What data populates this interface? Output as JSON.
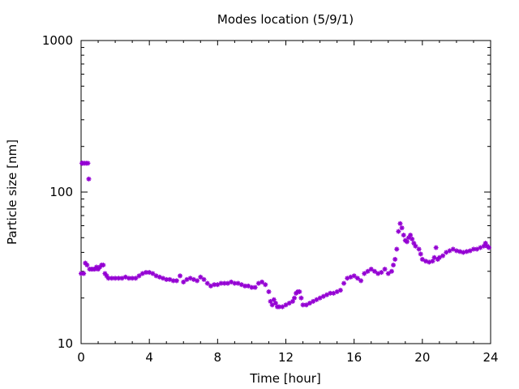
{
  "chart_data": {
    "type": "scatter",
    "title": "Modes location (5/9/1)",
    "xlabel": "Time [hour]",
    "ylabel": "Particle size [nm]",
    "xlim": [
      0,
      24
    ],
    "ylim": [
      10,
      1000
    ],
    "y_scale": "log",
    "x_ticks": [
      0,
      4,
      8,
      12,
      16,
      20,
      24
    ],
    "x_tick_labels": [
      "0",
      "4",
      "8",
      "12",
      "16",
      "20",
      "24"
    ],
    "y_ticks": [
      10,
      100,
      1000
    ],
    "y_tick_labels": [
      "10",
      "100",
      "1000"
    ],
    "grid": false,
    "marker_color": "#9400d3",
    "series": [
      {
        "points": [
          [
            0.0,
            29
          ],
          [
            0.05,
            155
          ],
          [
            0.1,
            155
          ],
          [
            0.15,
            29
          ],
          [
            0.2,
            155
          ],
          [
            0.25,
            34
          ],
          [
            0.3,
            155
          ],
          [
            0.35,
            33
          ],
          [
            0.4,
            155
          ],
          [
            0.45,
            122
          ],
          [
            0.5,
            31
          ],
          [
            0.6,
            31
          ],
          [
            0.7,
            31
          ],
          [
            0.8,
            31
          ],
          [
            0.9,
            32
          ],
          [
            1.0,
            31
          ],
          [
            1.1,
            32
          ],
          [
            1.2,
            33
          ],
          [
            1.3,
            33
          ],
          [
            1.4,
            29
          ],
          [
            1.5,
            28
          ],
          [
            1.6,
            27
          ],
          [
            1.8,
            27
          ],
          [
            2.0,
            27
          ],
          [
            2.2,
            27
          ],
          [
            2.4,
            27
          ],
          [
            2.6,
            27.5
          ],
          [
            2.8,
            27
          ],
          [
            3.0,
            27
          ],
          [
            3.2,
            27
          ],
          [
            3.4,
            28
          ],
          [
            3.6,
            29
          ],
          [
            3.8,
            29.5
          ],
          [
            4.0,
            29.5
          ],
          [
            4.2,
            29
          ],
          [
            4.4,
            28
          ],
          [
            4.6,
            27.5
          ],
          [
            4.8,
            27
          ],
          [
            5.0,
            26.5
          ],
          [
            5.2,
            26.5
          ],
          [
            5.4,
            26
          ],
          [
            5.6,
            26
          ],
          [
            5.8,
            28
          ],
          [
            6.0,
            25.5
          ],
          [
            6.2,
            26.5
          ],
          [
            6.4,
            27
          ],
          [
            6.6,
            26.5
          ],
          [
            6.8,
            26
          ],
          [
            7.0,
            27.5
          ],
          [
            7.2,
            26.5
          ],
          [
            7.4,
            25
          ],
          [
            7.6,
            24
          ],
          [
            7.8,
            24.5
          ],
          [
            8.0,
            24.5
          ],
          [
            8.2,
            25
          ],
          [
            8.4,
            25
          ],
          [
            8.6,
            25
          ],
          [
            8.8,
            25.5
          ],
          [
            9.0,
            25
          ],
          [
            9.2,
            25
          ],
          [
            9.4,
            24.5
          ],
          [
            9.6,
            24
          ],
          [
            9.8,
            24
          ],
          [
            10.0,
            23.5
          ],
          [
            10.2,
            23.5
          ],
          [
            10.4,
            25
          ],
          [
            10.6,
            25.5
          ],
          [
            10.8,
            24.5
          ],
          [
            11.0,
            22
          ],
          [
            11.1,
            19
          ],
          [
            11.2,
            18
          ],
          [
            11.3,
            19.5
          ],
          [
            11.4,
            18.5
          ],
          [
            11.5,
            17.5
          ],
          [
            11.6,
            17.5
          ],
          [
            11.8,
            17.5
          ],
          [
            12.0,
            18
          ],
          [
            12.2,
            18.5
          ],
          [
            12.4,
            19
          ],
          [
            12.5,
            20
          ],
          [
            12.6,
            21.5
          ],
          [
            12.7,
            22
          ],
          [
            12.8,
            22
          ],
          [
            12.9,
            20
          ],
          [
            13.0,
            18
          ],
          [
            13.2,
            18
          ],
          [
            13.4,
            18.5
          ],
          [
            13.6,
            19
          ],
          [
            13.8,
            19.5
          ],
          [
            14.0,
            20
          ],
          [
            14.2,
            20.5
          ],
          [
            14.4,
            21
          ],
          [
            14.6,
            21.5
          ],
          [
            14.8,
            21.5
          ],
          [
            15.0,
            22
          ],
          [
            15.2,
            22.5
          ],
          [
            15.4,
            25
          ],
          [
            15.6,
            27
          ],
          [
            15.8,
            27.5
          ],
          [
            16.0,
            28
          ],
          [
            16.2,
            27
          ],
          [
            16.4,
            26
          ],
          [
            16.6,
            29
          ],
          [
            16.8,
            30
          ],
          [
            17.0,
            31
          ],
          [
            17.2,
            30
          ],
          [
            17.4,
            29
          ],
          [
            17.6,
            29.5
          ],
          [
            17.8,
            31
          ],
          [
            18.0,
            29
          ],
          [
            18.2,
            30
          ],
          [
            18.3,
            33
          ],
          [
            18.4,
            36
          ],
          [
            18.5,
            42
          ],
          [
            18.6,
            55
          ],
          [
            18.7,
            62
          ],
          [
            18.8,
            58
          ],
          [
            18.9,
            52
          ],
          [
            19.0,
            48
          ],
          [
            19.1,
            47
          ],
          [
            19.2,
            50
          ],
          [
            19.3,
            52
          ],
          [
            19.4,
            49
          ],
          [
            19.5,
            46
          ],
          [
            19.6,
            44
          ],
          [
            19.8,
            42
          ],
          [
            19.9,
            39
          ],
          [
            20.0,
            36
          ],
          [
            20.2,
            35
          ],
          [
            20.4,
            34.5
          ],
          [
            20.6,
            35
          ],
          [
            20.7,
            37
          ],
          [
            20.8,
            43
          ],
          [
            20.9,
            36
          ],
          [
            21.0,
            37
          ],
          [
            21.2,
            38
          ],
          [
            21.4,
            40
          ],
          [
            21.6,
            41
          ],
          [
            21.8,
            42
          ],
          [
            22.0,
            41
          ],
          [
            22.2,
            40.5
          ],
          [
            22.4,
            40
          ],
          [
            22.6,
            40.5
          ],
          [
            22.8,
            41
          ],
          [
            23.0,
            42
          ],
          [
            23.2,
            42
          ],
          [
            23.4,
            43
          ],
          [
            23.6,
            44
          ],
          [
            23.7,
            46
          ],
          [
            23.8,
            44
          ],
          [
            23.9,
            43
          ]
        ]
      }
    ]
  }
}
